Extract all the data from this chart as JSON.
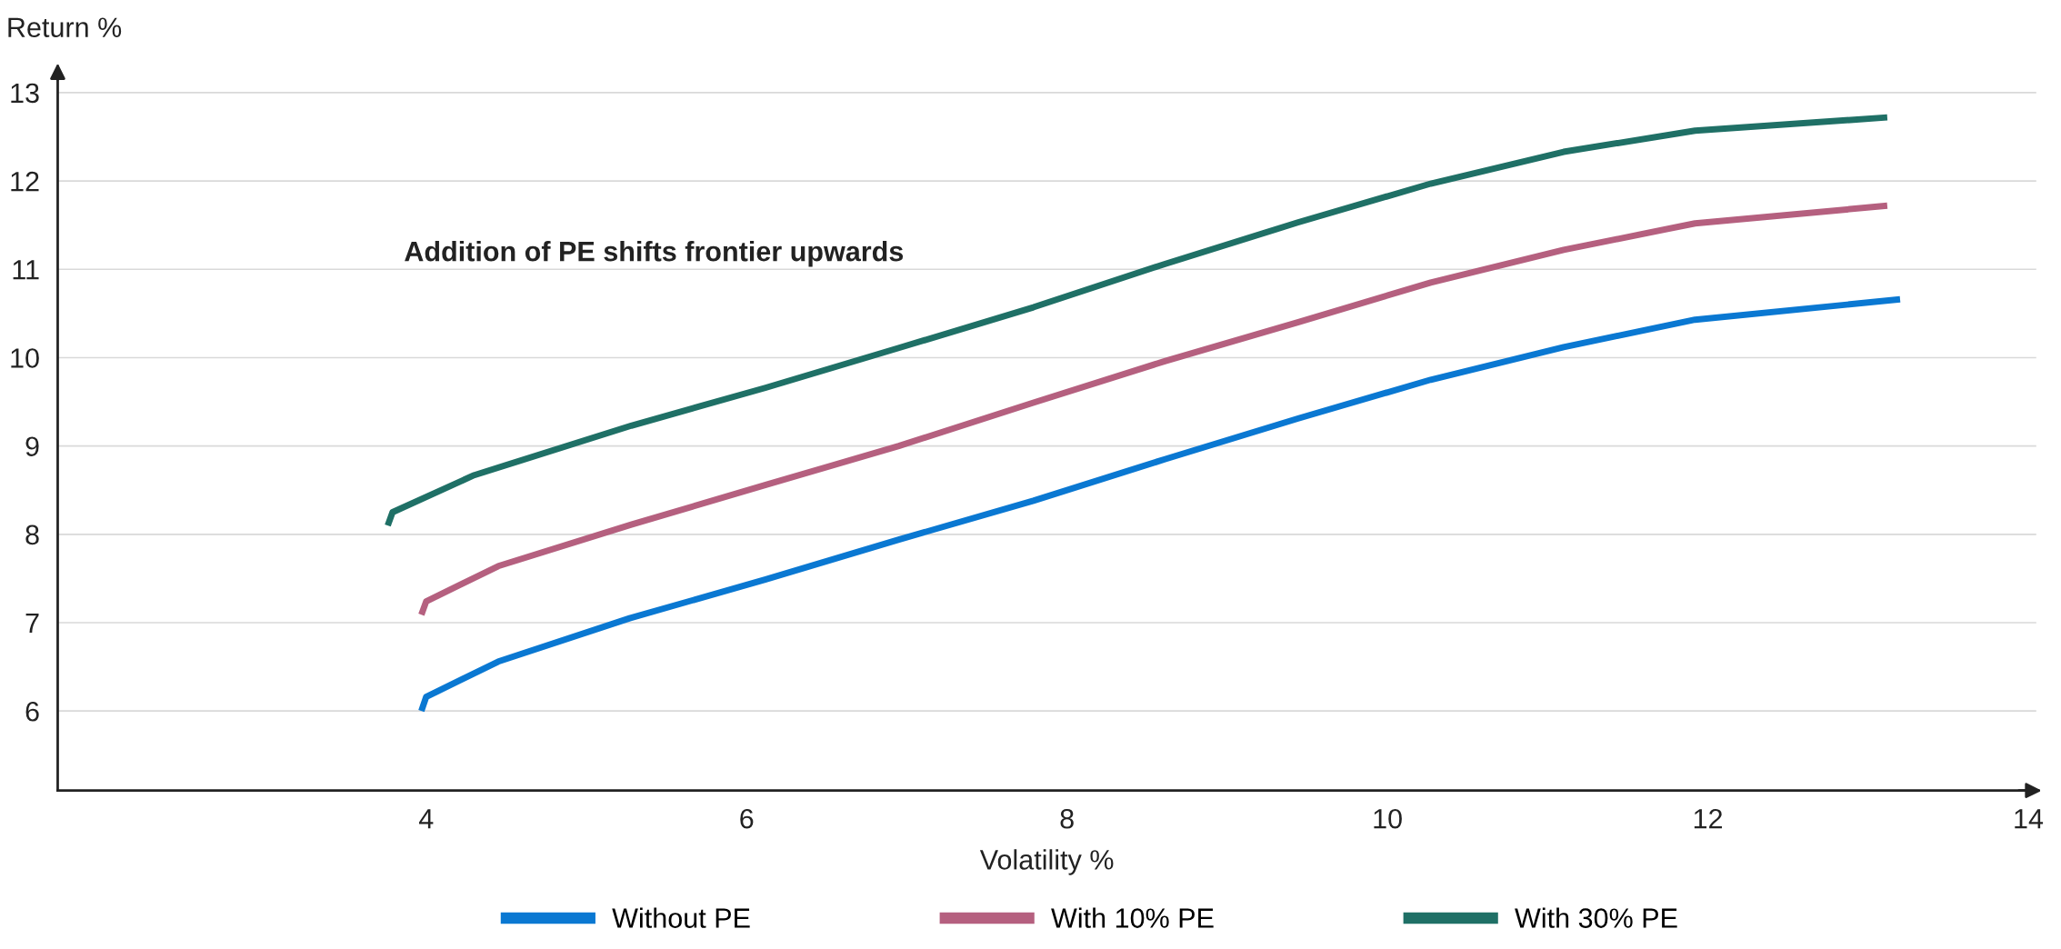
{
  "chart_data": {
    "type": "line",
    "xlabel": "Volatility %",
    "ylabel": "Return %",
    "annotations": [
      "Addition of PE shifts frontier upwards"
    ],
    "xlim": [
      1.7,
      14.05
    ],
    "xticks": [
      4,
      6,
      8,
      10,
      12,
      14
    ],
    "ylim": [
      5.1,
      13.2
    ],
    "yticks": [
      6,
      7,
      8,
      9,
      10,
      11,
      12,
      13
    ],
    "grid": "y",
    "legend": "bottom",
    "marker": "none",
    "line_style": "solid",
    "series": [
      {
        "name": "Without PE",
        "color": "#0a78d2",
        "x": [
          3.97,
          4.0,
          4.45,
          5.27,
          6.12,
          6.95,
          7.79,
          8.61,
          9.44,
          10.27,
          11.1,
          11.92,
          13.2
        ],
        "values": [
          6.0,
          6.16,
          6.56,
          7.05,
          7.49,
          7.94,
          8.38,
          8.85,
          9.31,
          9.75,
          10.12,
          10.43,
          10.66
        ]
      },
      {
        "name": "With 10% PE",
        "color": "#b5607f",
        "x": [
          3.97,
          4.0,
          4.45,
          5.28,
          6.12,
          6.95,
          7.79,
          8.61,
          9.44,
          10.27,
          11.1,
          11.92,
          13.12
        ],
        "values": [
          7.09,
          7.24,
          7.64,
          8.11,
          8.56,
          9.0,
          9.49,
          9.96,
          10.4,
          10.85,
          11.22,
          11.52,
          11.72
        ]
      },
      {
        "name": "With 30% PE",
        "color": "#1f7066",
        "x": [
          3.76,
          3.79,
          4.3,
          5.28,
          6.12,
          6.95,
          7.79,
          8.61,
          9.44,
          10.27,
          11.1,
          11.92,
          13.12
        ],
        "values": [
          8.1,
          8.25,
          8.67,
          9.23,
          9.66,
          10.11,
          10.57,
          11.06,
          11.53,
          11.97,
          12.33,
          12.57,
          12.72
        ]
      }
    ]
  }
}
